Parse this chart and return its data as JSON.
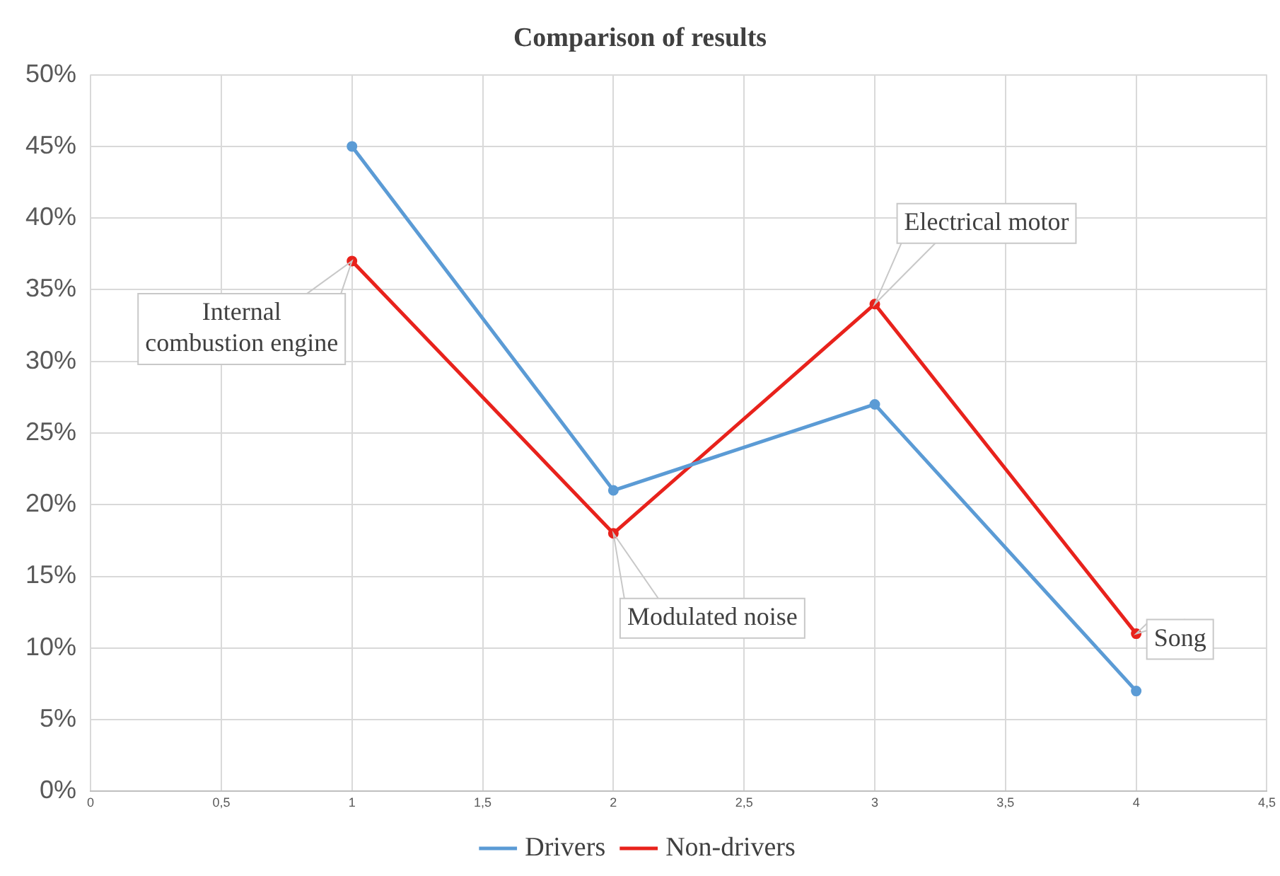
{
  "chart_data": {
    "type": "line",
    "title": "Comparison of results",
    "x": [
      1,
      2,
      3,
      4
    ],
    "series": [
      {
        "name": "Drivers",
        "color": "#5b9bd5",
        "values": [
          45,
          21,
          27,
          7
        ]
      },
      {
        "name": "Non-drivers",
        "color": "#e8221c",
        "values": [
          37,
          18,
          34,
          11
        ]
      }
    ],
    "xlim": [
      0,
      4.5
    ],
    "xticks": [
      0,
      {
        "value": 0.5,
        "label": "0,5"
      },
      1,
      {
        "value": 1.5,
        "label": "1,5"
      },
      2,
      {
        "value": 2.5,
        "label": "2,5"
      },
      3,
      {
        "value": 3.5,
        "label": "3,5"
      },
      4,
      {
        "value": 4.5,
        "label": "4,5"
      }
    ],
    "ylim": [
      0,
      50
    ],
    "yticks": [
      {
        "value": 0,
        "label": "0%"
      },
      {
        "value": 5,
        "label": "5%"
      },
      {
        "value": 10,
        "label": "10%"
      },
      {
        "value": 15,
        "label": "15%"
      },
      {
        "value": 20,
        "label": "20%"
      },
      {
        "value": 25,
        "label": "25%"
      },
      {
        "value": 30,
        "label": "30%"
      },
      {
        "value": 35,
        "label": "35%"
      },
      {
        "value": 40,
        "label": "40%"
      },
      {
        "value": 45,
        "label": "45%"
      },
      {
        "value": 50,
        "label": "50%"
      }
    ],
    "annotations": [
      {
        "text": "Internal combustion engine",
        "x": 1,
        "y": 37
      },
      {
        "text": "Modulated noise",
        "x": 2,
        "y": 18
      },
      {
        "text": "Electrical motor",
        "x": 3,
        "y": 34
      },
      {
        "text": "Song",
        "x": 4,
        "y": 11
      }
    ],
    "grid": true,
    "legend": "bottom",
    "marker": "circle",
    "line_style": "solid"
  }
}
